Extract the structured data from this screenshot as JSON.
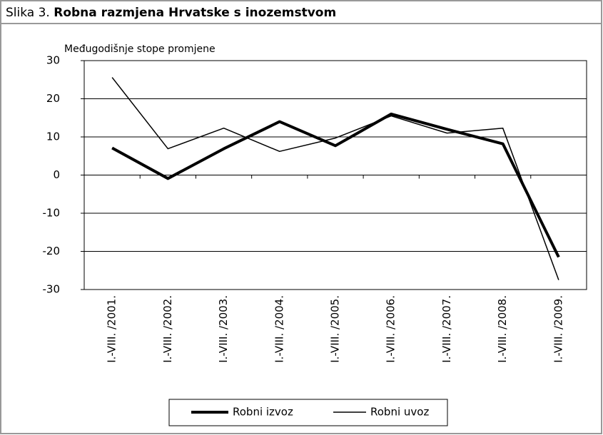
{
  "chart_data": {
    "type": "line",
    "figure_label": "Slika 3.",
    "title": "Robna razmjena Hrvatske s inozemstvom",
    "y_label": "Međugodišnje stope promjene",
    "categories": [
      "I.-VIII. /2001.",
      "I.-VIII. /2002.",
      "I.-VIII. /2003.",
      "I.-VIII. /2004.",
      "I.-VIII. /2005.",
      "I.-VIII. /2006.",
      "I.-VIII. /2007.",
      "I.-VIII. /2008.",
      "I.-VIII. /2009."
    ],
    "series": [
      {
        "name": "Robni izvoz",
        "color": "#000000",
        "values": [
          7.1,
          -0.9,
          6.9,
          14,
          7.7,
          16,
          12,
          8.2,
          -21.5
        ]
      },
      {
        "name": "Robni uvoz",
        "color": "#000000",
        "values": [
          25.6,
          6.9,
          12.3,
          6.2,
          9.7,
          15.5,
          11,
          12.3,
          -27.5
        ]
      }
    ],
    "ylim": [
      -30,
      30
    ],
    "yticks": [
      -30,
      -20,
      -10,
      0,
      10,
      20,
      30
    ],
    "grid": true
  }
}
